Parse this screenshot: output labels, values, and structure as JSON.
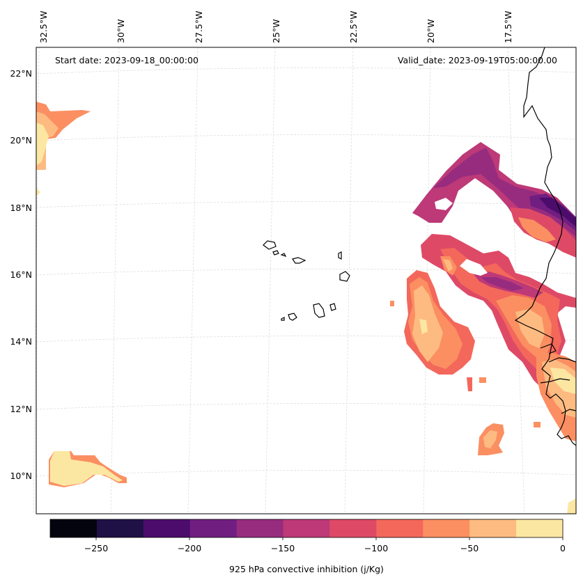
{
  "map": {
    "start_date": "Start date: 2023-09-18_00:00:00",
    "valid_date": "Valid_date: 2023-09-19T05:00:00.00",
    "lon_labels": [
      "32.5°W",
      "30°W",
      "27.5°W",
      "25°W",
      "22.5°W",
      "20°W",
      "17.5°W"
    ],
    "lat_labels": [
      "22°N",
      "20°N",
      "18°N",
      "16°N",
      "14°N",
      "12°N",
      "10°N"
    ]
  },
  "colorbar": {
    "label": "925 hPa convective inhibition (j/Kg)",
    "tick_labels": [
      "−250",
      "−200",
      "−150",
      "−100",
      "−50",
      "0"
    ],
    "colors": [
      "#04040f",
      "#1f1146",
      "#4b0c6b",
      "#711e81",
      "#972c7f",
      "#bd3977",
      "#de4a66",
      "#f3685b",
      "#fb8f62",
      "#febb81",
      "#fce7a2"
    ]
  }
}
